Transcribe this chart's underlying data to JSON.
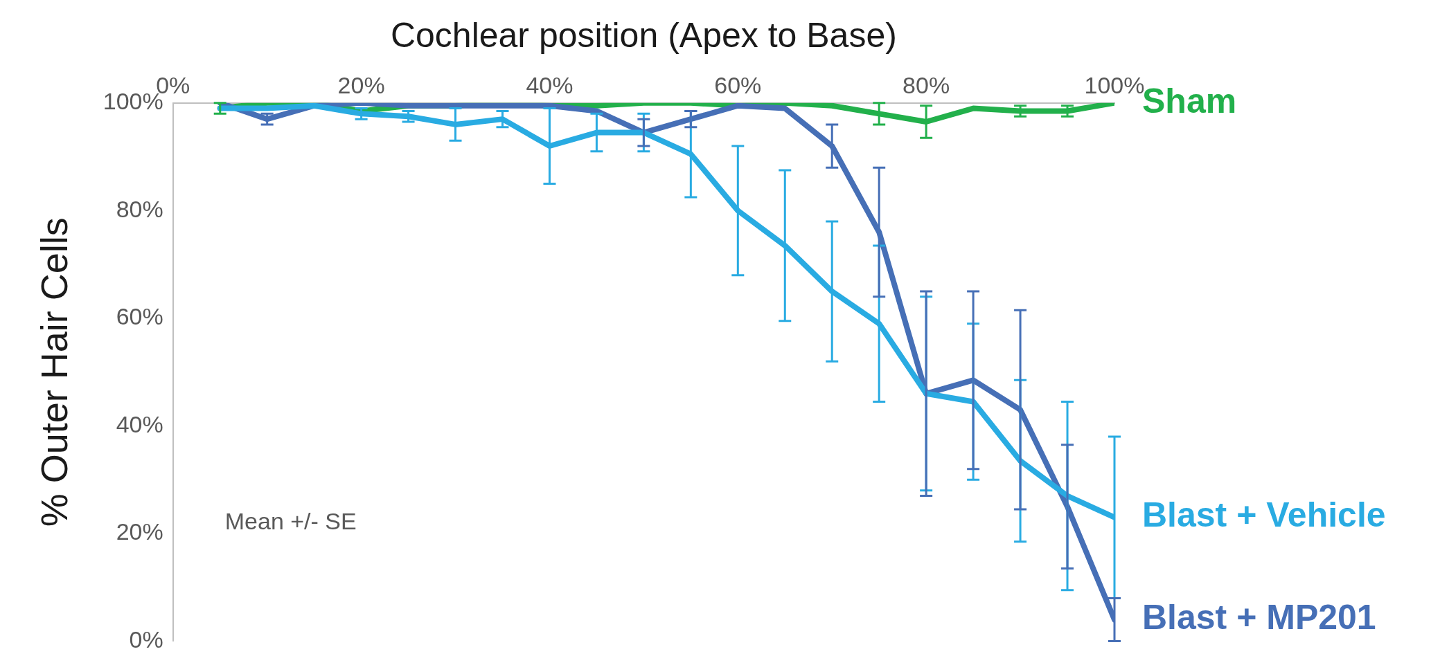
{
  "chart_data": {
    "type": "line",
    "xlabel": "Cochlear position (Apex to Base)",
    "ylabel": "% Outer Hair Cells",
    "x": [
      5,
      10,
      15,
      20,
      25,
      30,
      35,
      40,
      45,
      50,
      55,
      60,
      65,
      70,
      75,
      80,
      85,
      90,
      95,
      100
    ],
    "xlim": [
      0,
      100
    ],
    "xticks": [
      {
        "value": 0,
        "label": "0%"
      },
      {
        "value": 20,
        "label": "20%"
      },
      {
        "value": 40,
        "label": "40%"
      },
      {
        "value": 60,
        "label": "60%"
      },
      {
        "value": 80,
        "label": "80%"
      },
      {
        "value": 100,
        "label": "100%"
      }
    ],
    "ylim": [
      0,
      100
    ],
    "yticks": [
      {
        "value": 0,
        "label": "0%"
      },
      {
        "value": 20,
        "label": "20%"
      },
      {
        "value": 40,
        "label": "40%"
      },
      {
        "value": 60,
        "label": "60%"
      },
      {
        "value": 80,
        "label": "80%"
      },
      {
        "value": 100,
        "label": "100%"
      }
    ],
    "series": [
      {
        "name": "Blast + Vehicle",
        "color": "#29abe2",
        "values": [
          99,
          99,
          99.5,
          98,
          97.5,
          96,
          97,
          92,
          94.5,
          94.5,
          90.5,
          80,
          73.5,
          65,
          59,
          46,
          44.5,
          33.5,
          27,
          23
        ],
        "errors": [
          null,
          null,
          null,
          1,
          1,
          3,
          1.5,
          7,
          3.5,
          3.5,
          8,
          12,
          14,
          13,
          14.5,
          18,
          14.5,
          15,
          17.5,
          15
        ]
      },
      {
        "name": "Blast + MP201",
        "color": "#466fb6",
        "values": [
          100,
          97,
          99.5,
          100,
          99.5,
          99.5,
          99.5,
          99.5,
          98.5,
          94.5,
          97,
          99.5,
          99,
          92,
          76,
          46,
          48.5,
          43,
          25,
          4
        ],
        "errors": [
          null,
          1,
          null,
          null,
          null,
          null,
          null,
          null,
          null,
          2.5,
          1.5,
          null,
          null,
          4,
          12,
          19,
          16.5,
          18.5,
          11.5,
          4
        ]
      },
      {
        "name": "Sham",
        "color": "#22b04b",
        "values": [
          99,
          100,
          100,
          98.5,
          99.5,
          99.5,
          100,
          99.5,
          99.5,
          100,
          100,
          99.5,
          100,
          99.5,
          98,
          96.5,
          99,
          98.5,
          98.5,
          100
        ],
        "errors": [
          1,
          null,
          null,
          null,
          null,
          null,
          null,
          null,
          null,
          null,
          null,
          null,
          null,
          null,
          2,
          3,
          null,
          1,
          1,
          null
        ]
      }
    ],
    "annotations": [
      "Mean +/- SE"
    ],
    "legend": "right",
    "grid": false,
    "marker": "none",
    "line_style": "solid"
  }
}
